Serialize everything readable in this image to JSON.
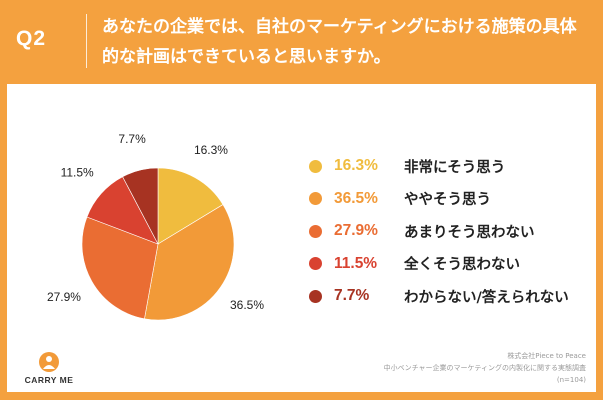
{
  "header": {
    "question_label": "Q2",
    "question_text": "あなたの企業では、自社のマーケティングにおける施策の具体的な計画はできていると思いますか。"
  },
  "chart_data": {
    "type": "pie",
    "slices": [
      {
        "label": "非常にそう思う",
        "value": 16.3,
        "display": "16.3%",
        "color": "#f0bc3e"
      },
      {
        "label": "ややそう思う",
        "value": 36.5,
        "display": "36.5%",
        "color": "#f29a38"
      },
      {
        "label": "あまりそう思わない",
        "value": 27.9,
        "display": "27.9%",
        "color": "#ea6d33"
      },
      {
        "label": "全くそう思わない",
        "value": 11.5,
        "display": "11.5%",
        "color": "#d94230"
      },
      {
        "label": "わからない/答えられない",
        "value": 7.7,
        "display": "7.7%",
        "color": "#a73322"
      }
    ],
    "legend_placement": "right"
  },
  "footer": {
    "logo_text": "CARRY ME",
    "source_lines": [
      "株式会社Piece to Peace",
      "中小ベンチャー企業のマーケティングの内製化に関する実態調査",
      "(n=104)"
    ]
  },
  "colors": {
    "background": "#f4a13f",
    "panel": "#ffffff",
    "logo_orange": "#f29a38"
  }
}
